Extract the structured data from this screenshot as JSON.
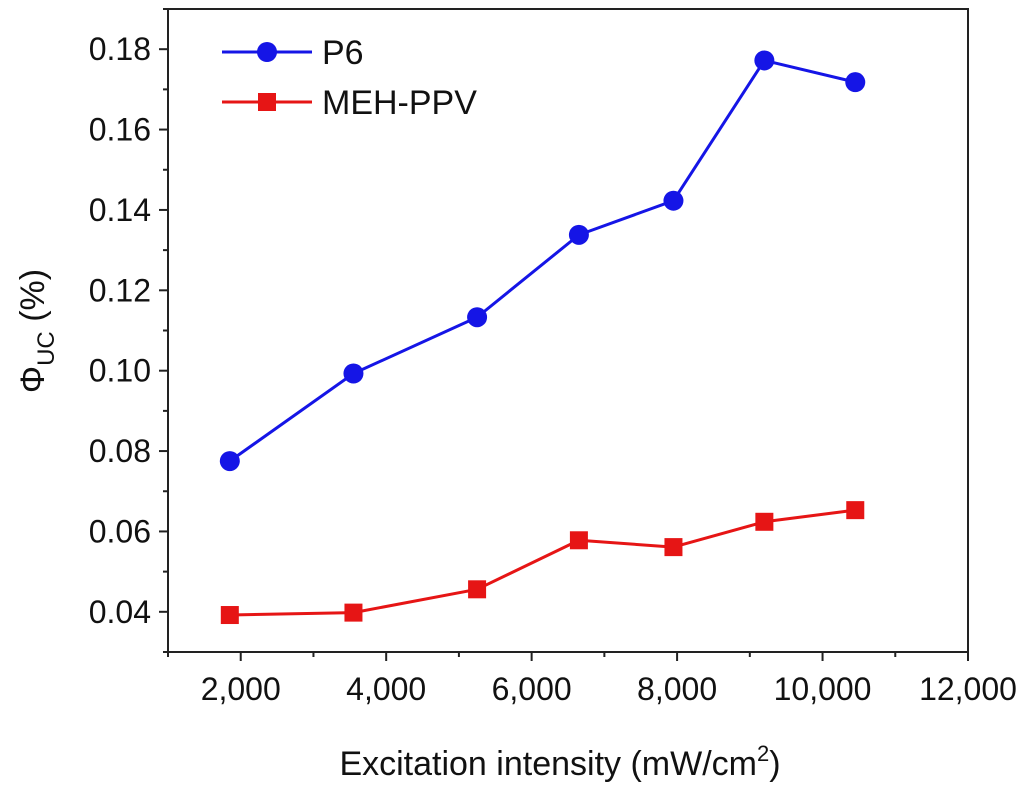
{
  "chart_data": {
    "type": "line",
    "title": "",
    "xlabel": "Excitation intensity (mW/cm",
    "xlabel_sup": "2",
    "xlabel_end": ")",
    "ylabel": "Φ",
    "ylabel_sub": "UC",
    "ylabel_end": " (%)",
    "xlim": [
      1000,
      12000
    ],
    "ylim": [
      0.03,
      0.19
    ],
    "xticks": [
      2000,
      4000,
      6000,
      8000,
      10000,
      12000
    ],
    "xtick_labels": [
      "2,000",
      "4,000",
      "6,000",
      "8,000",
      "10,000",
      "12,000"
    ],
    "yticks": [
      0.04,
      0.06,
      0.08,
      0.1,
      0.12,
      0.14,
      0.16,
      0.18
    ],
    "ytick_labels": [
      "0.04",
      "0.06",
      "0.08",
      "0.10",
      "0.12",
      "0.14",
      "0.16",
      "0.18"
    ],
    "legend_position": "top-left",
    "series": [
      {
        "name": "P6",
        "color": "#1515e6",
        "marker": "circle",
        "x": [
          1850,
          3550,
          5250,
          6650,
          7950,
          9200,
          10450
        ],
        "y": [
          0.0775,
          0.0993,
          0.1133,
          0.1338,
          0.1423,
          0.1772,
          0.1718
        ]
      },
      {
        "name": "MEH-PPV",
        "color": "#e61515",
        "marker": "square",
        "x": [
          1850,
          3550,
          5250,
          6650,
          7950,
          9200,
          10450
        ],
        "y": [
          0.0392,
          0.0398,
          0.0456,
          0.0578,
          0.0561,
          0.0624,
          0.0653
        ]
      }
    ]
  }
}
